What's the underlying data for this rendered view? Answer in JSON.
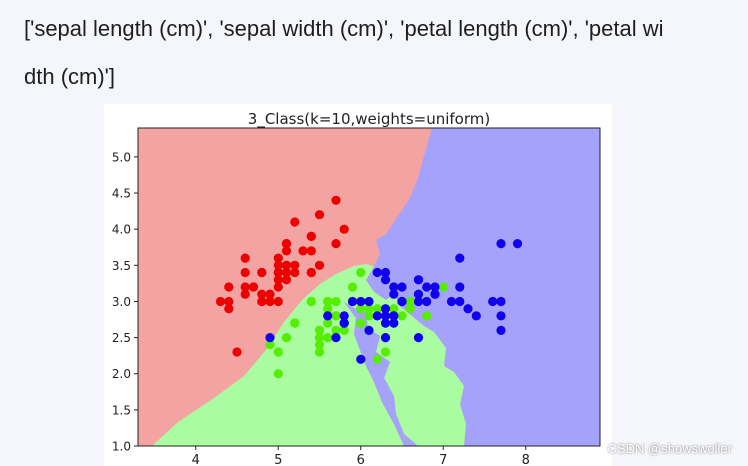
{
  "code_output": {
    "line1": "['sepal length (cm)', 'sepal width (cm)', 'petal length (cm)',  'petal wi",
    "line2": "dth (cm)']"
  },
  "watermark": "CSDN @showswoller",
  "colors": {
    "region_class0": "#f4a3a3",
    "region_class1": "#a9fc9f",
    "region_class2": "#a4a2fb",
    "point_class0": "#ee0000",
    "point_class1": "#55ee00",
    "point_class2": "#1100ee"
  },
  "chart_data": {
    "type": "scatter",
    "title": "3_Class(k=10,weights=uniform)",
    "xlabel": "",
    "ylabel": "",
    "xlim": [
      3.3,
      8.9
    ],
    "ylim": [
      1.0,
      5.4
    ],
    "x_ticks": [
      "4",
      "5",
      "6",
      "7",
      "8"
    ],
    "y_ticks": [
      "1.0",
      "1.5",
      "2.0",
      "2.5",
      "3.0",
      "3.5",
      "4.0",
      "4.5",
      "5.0"
    ],
    "grid": false,
    "legend": "none",
    "background": "decision regions of a k-nearest-neighbors classifier",
    "series": [
      {
        "class": 0,
        "points": [
          [
            5.1,
            3.5
          ],
          [
            4.9,
            3.0
          ],
          [
            4.7,
            3.2
          ],
          [
            4.6,
            3.1
          ],
          [
            5.0,
            3.6
          ],
          [
            5.4,
            3.9
          ],
          [
            4.6,
            3.4
          ],
          [
            5.0,
            3.4
          ],
          [
            4.4,
            2.9
          ],
          [
            4.9,
            3.1
          ],
          [
            5.4,
            3.7
          ],
          [
            4.8,
            3.4
          ],
          [
            4.8,
            3.0
          ],
          [
            4.3,
            3.0
          ],
          [
            5.8,
            4.0
          ],
          [
            5.7,
            4.4
          ],
          [
            5.4,
            3.9
          ],
          [
            5.1,
            3.5
          ],
          [
            5.7,
            3.8
          ],
          [
            5.1,
            3.8
          ],
          [
            5.4,
            3.4
          ],
          [
            5.1,
            3.7
          ],
          [
            4.6,
            3.6
          ],
          [
            5.1,
            3.3
          ],
          [
            4.8,
            3.4
          ],
          [
            5.0,
            3.0
          ],
          [
            5.0,
            3.4
          ],
          [
            5.2,
            3.5
          ],
          [
            5.2,
            3.4
          ],
          [
            4.7,
            3.2
          ],
          [
            4.8,
            3.1
          ],
          [
            5.4,
            3.4
          ],
          [
            5.2,
            4.1
          ],
          [
            5.5,
            4.2
          ],
          [
            4.9,
            3.1
          ],
          [
            5.0,
            3.2
          ],
          [
            5.5,
            3.5
          ],
          [
            4.4,
            3.0
          ],
          [
            5.1,
            3.4
          ],
          [
            5.0,
            3.5
          ],
          [
            4.5,
            2.3
          ],
          [
            4.4,
            3.2
          ],
          [
            5.1,
            3.8
          ],
          [
            4.8,
            3.0
          ],
          [
            4.6,
            3.2
          ],
          [
            5.3,
            3.7
          ],
          [
            5.0,
            3.3
          ]
        ]
      },
      {
        "class": 1,
        "points": [
          [
            6.4,
            3.2
          ],
          [
            5.5,
            2.3
          ],
          [
            6.5,
            2.8
          ],
          [
            5.7,
            2.8
          ],
          [
            6.3,
            3.3
          ],
          [
            4.9,
            2.4
          ],
          [
            6.6,
            2.9
          ],
          [
            5.2,
            2.7
          ],
          [
            5.0,
            2.0
          ],
          [
            5.9,
            3.0
          ],
          [
            6.0,
            2.2
          ],
          [
            6.1,
            2.9
          ],
          [
            5.6,
            2.9
          ],
          [
            6.7,
            3.1
          ],
          [
            5.6,
            3.0
          ],
          [
            5.8,
            2.7
          ],
          [
            6.2,
            2.2
          ],
          [
            5.6,
            2.5
          ],
          [
            5.9,
            3.2
          ],
          [
            6.1,
            2.8
          ],
          [
            6.3,
            2.5
          ],
          [
            6.4,
            2.9
          ],
          [
            6.6,
            3.0
          ],
          [
            6.8,
            2.8
          ],
          [
            6.0,
            2.9
          ],
          [
            5.7,
            2.6
          ],
          [
            5.5,
            2.4
          ],
          [
            5.8,
            2.7
          ],
          [
            6.0,
            2.7
          ],
          [
            5.4,
            3.0
          ],
          [
            6.0,
            3.4
          ],
          [
            6.3,
            2.3
          ],
          [
            5.6,
            3.0
          ],
          [
            5.5,
            2.5
          ],
          [
            5.5,
            2.6
          ],
          [
            6.1,
            3.0
          ],
          [
            5.8,
            2.6
          ],
          [
            5.0,
            2.3
          ],
          [
            5.6,
            2.7
          ],
          [
            5.7,
            3.0
          ],
          [
            6.2,
            2.9
          ],
          [
            5.1,
            2.5
          ],
          [
            5.7,
            2.8
          ],
          [
            7.0,
            3.2
          ],
          [
            6.9,
            3.1
          ],
          [
            5.9,
            3.0
          ],
          [
            6.1,
            3.0
          ],
          [
            5.2,
            2.7
          ],
          [
            5.4,
            3.0
          ],
          [
            6.1,
            2.6
          ]
        ]
      },
      {
        "class": 2,
        "points": [
          [
            6.3,
            3.3
          ],
          [
            5.8,
            2.7
          ],
          [
            7.1,
            3.0
          ],
          [
            6.3,
            2.9
          ],
          [
            6.5,
            3.0
          ],
          [
            7.6,
            3.0
          ],
          [
            4.9,
            2.5
          ],
          [
            7.3,
            2.9
          ],
          [
            6.7,
            2.5
          ],
          [
            7.2,
            3.6
          ],
          [
            6.5,
            3.2
          ],
          [
            6.4,
            2.7
          ],
          [
            6.8,
            3.0
          ],
          [
            5.7,
            2.5
          ],
          [
            5.8,
            2.8
          ],
          [
            6.4,
            3.2
          ],
          [
            6.5,
            3.0
          ],
          [
            7.7,
            3.8
          ],
          [
            7.7,
            2.6
          ],
          [
            6.0,
            2.2
          ],
          [
            6.9,
            3.2
          ],
          [
            5.6,
            2.8
          ],
          [
            7.7,
            2.8
          ],
          [
            6.3,
            2.7
          ],
          [
            6.7,
            3.3
          ],
          [
            7.2,
            3.2
          ],
          [
            6.2,
            2.8
          ],
          [
            6.1,
            3.0
          ],
          [
            6.4,
            2.8
          ],
          [
            7.2,
            3.0
          ],
          [
            7.4,
            2.8
          ],
          [
            7.9,
            3.8
          ],
          [
            6.4,
            2.8
          ],
          [
            6.3,
            2.8
          ],
          [
            6.1,
            2.6
          ],
          [
            7.7,
            3.0
          ],
          [
            6.3,
            3.4
          ],
          [
            6.4,
            3.1
          ],
          [
            6.0,
            3.0
          ],
          [
            6.9,
            3.1
          ],
          [
            6.7,
            3.1
          ],
          [
            6.9,
            3.1
          ],
          [
            5.8,
            2.7
          ],
          [
            6.8,
            3.2
          ],
          [
            6.7,
            3.3
          ],
          [
            6.7,
            3.0
          ],
          [
            6.3,
            2.5
          ],
          [
            6.5,
            3.0
          ],
          [
            6.2,
            3.4
          ],
          [
            5.9,
            3.0
          ]
        ]
      }
    ]
  }
}
